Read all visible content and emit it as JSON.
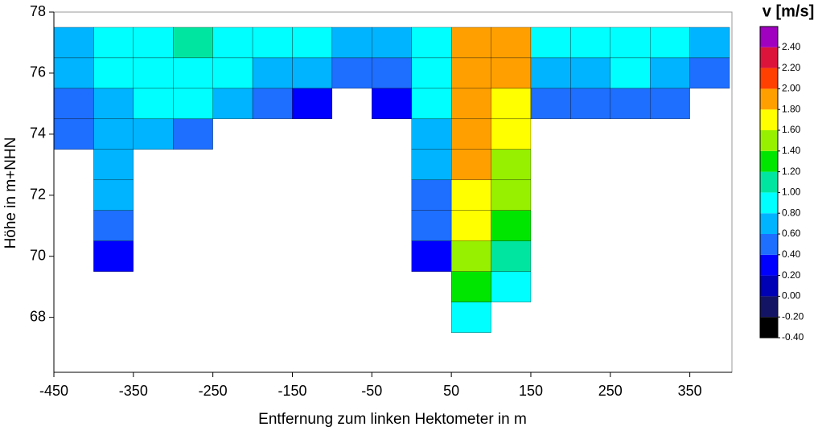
{
  "chart_data": {
    "type": "heatmap",
    "xlabel": "Entfernung zum linken Hektometer in m",
    "ylabel": "Höhe in m+NHN",
    "xlim": [
      -450,
      403
    ],
    "ylim": [
      66.2,
      78
    ],
    "xticks": [
      -450,
      -350,
      -250,
      -150,
      -50,
      50,
      150,
      250,
      350
    ],
    "yticks": [
      68,
      70,
      72,
      74,
      76,
      78
    ],
    "x": [
      -425,
      -375,
      -325,
      -275,
      -225,
      -175,
      -125,
      -75,
      -25,
      25,
      75,
      125,
      175,
      225,
      275,
      325,
      375
    ],
    "y": [
      77,
      76,
      75,
      74,
      73,
      72,
      71,
      70,
      69,
      68
    ],
    "z": [
      [
        0.7,
        0.85,
        0.95,
        1.05,
        0.95,
        0.85,
        0.8,
        0.75,
        0.75,
        1.0,
        2.0,
        1.9,
        0.8,
        0.8,
        0.95,
        0.9,
        0.6
      ],
      [
        0.65,
        0.8,
        0.9,
        0.95,
        0.85,
        0.7,
        0.65,
        0.55,
        0.55,
        0.95,
        1.95,
        1.8,
        0.65,
        0.7,
        0.8,
        0.75,
        0.5
      ],
      [
        0.55,
        0.75,
        0.8,
        0.8,
        0.6,
        0.45,
        0.35,
        null,
        0.35,
        0.85,
        1.9,
        1.7,
        0.45,
        0.5,
        0.55,
        0.5,
        null
      ],
      [
        0.45,
        0.7,
        0.6,
        0.55,
        null,
        null,
        null,
        null,
        null,
        0.75,
        1.85,
        1.6,
        null,
        null,
        null,
        null,
        null
      ],
      [
        null,
        0.65,
        null,
        null,
        null,
        null,
        null,
        null,
        null,
        0.65,
        1.8,
        1.55,
        null,
        null,
        null,
        null,
        null
      ],
      [
        null,
        0.6,
        null,
        null,
        null,
        null,
        null,
        null,
        null,
        0.55,
        1.75,
        1.45,
        null,
        null,
        null,
        null,
        null
      ],
      [
        null,
        0.5,
        null,
        null,
        null,
        null,
        null,
        null,
        null,
        0.45,
        1.65,
        1.3,
        null,
        null,
        null,
        null,
        null
      ],
      [
        null,
        0.35,
        null,
        null,
        null,
        null,
        null,
        null,
        null,
        0.35,
        1.55,
        1.15,
        null,
        null,
        null,
        null,
        null
      ],
      [
        null,
        null,
        null,
        null,
        null,
        null,
        null,
        null,
        null,
        null,
        1.3,
        0.85,
        null,
        null,
        null,
        null,
        null
      ],
      [
        null,
        null,
        null,
        null,
        null,
        null,
        null,
        null,
        null,
        null,
        0.95,
        null,
        null,
        null,
        null,
        null,
        null
      ]
    ],
    "colorbar": {
      "title": "v [m/s]",
      "clim": [
        -0.4,
        2.6
      ],
      "colors": [
        "#000000",
        "#141464",
        "#0000b4",
        "#0000ff",
        "#1e6eff",
        "#00b4ff",
        "#00ffff",
        "#00e6a0",
        "#00e600",
        "#96f000",
        "#ffff00",
        "#ffa000",
        "#ff4000",
        "#dc143c",
        "#a000c0"
      ],
      "ticks": [
        {
          "value": -0.4,
          "label": "-0.40"
        },
        {
          "value": -0.2,
          "label": "-0.20"
        },
        {
          "value": 0,
          "label": "0.00"
        },
        {
          "value": 0.2,
          "label": "0.20"
        },
        {
          "value": 0.4,
          "label": "0.40"
        },
        {
          "value": 0.6,
          "label": "0.60"
        },
        {
          "value": 0.8,
          "label": "0.80"
        },
        {
          "value": 1.0,
          "label": "1.00"
        },
        {
          "value": 1.2,
          "label": "1.20"
        },
        {
          "value": 1.4,
          "label": "1.40"
        },
        {
          "value": 1.6,
          "label": "1.60"
        },
        {
          "value": 1.8,
          "label": "1.80"
        },
        {
          "value": 2.0,
          "label": "2.00"
        },
        {
          "value": 2.2,
          "label": "2.20"
        },
        {
          "value": 2.4,
          "label": "2.40"
        }
      ]
    }
  }
}
